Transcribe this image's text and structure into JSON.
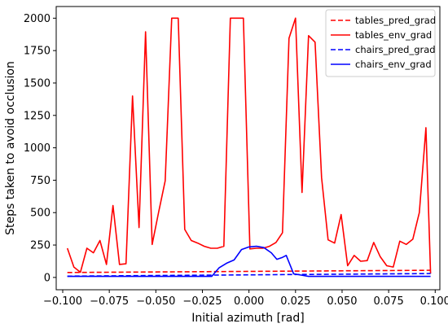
{
  "chart_data": {
    "type": "line",
    "title": "",
    "xlabel": "Initial azimuth [rad]",
    "ylabel": "Steps taken to avoid occlusion",
    "xlim": [
      -0.1035,
      0.1025
    ],
    "ylim": [
      -95,
      2090
    ],
    "xticks": [
      -0.1,
      -0.075,
      -0.05,
      -0.025,
      0.0,
      0.025,
      0.05,
      0.075,
      0.1
    ],
    "xtick_labels": [
      "−0.100",
      "−0.075",
      "−0.050",
      "−0.025",
      "0.000",
      "0.025",
      "0.050",
      "0.075",
      "0.100"
    ],
    "yticks": [
      0,
      250,
      500,
      750,
      1000,
      1250,
      1500,
      1750,
      2000
    ],
    "ytick_labels": [
      "0",
      "250",
      "500",
      "750",
      "1000",
      "1250",
      "1500",
      "1750",
      "2000"
    ],
    "grid": false,
    "legend_position": "top-right",
    "series": [
      {
        "name": "tables_pred_grad",
        "color": "#ff0000",
        "dash": "dashed",
        "x": [
          -0.0975,
          0.0975
        ],
        "y": [
          38,
          55
        ]
      },
      {
        "name": "tables_env_grad",
        "color": "#ff0000",
        "dash": "solid",
        "x": [
          -0.0975,
          -0.094,
          -0.0905,
          -0.087,
          -0.0835,
          -0.08,
          -0.0765,
          -0.073,
          -0.0695,
          -0.066,
          -0.0625,
          -0.059,
          -0.0555,
          -0.052,
          -0.0485,
          -0.045,
          -0.0415,
          -0.038,
          -0.0345,
          -0.031,
          -0.0275,
          -0.024,
          -0.0205,
          -0.017,
          -0.0135,
          -0.01,
          -0.0065,
          -0.003,
          0.0005,
          0.004,
          0.0075,
          0.011,
          0.0145,
          0.018,
          0.0215,
          0.025,
          0.0285,
          0.032,
          0.0355,
          0.039,
          0.0425,
          0.046,
          0.0495,
          0.053,
          0.0565,
          0.06,
          0.0635,
          0.067,
          0.0705,
          0.074,
          0.0775,
          0.081,
          0.0845,
          0.088,
          0.0915,
          0.095,
          0.0975
        ],
        "y": [
          225,
          80,
          40,
          225,
          190,
          285,
          100,
          555,
          100,
          105,
          1400,
          385,
          1895,
          255,
          505,
          745,
          2000,
          2000,
          370,
          285,
          265,
          240,
          225,
          225,
          240,
          2000,
          2000,
          2000,
          220,
          225,
          225,
          240,
          270,
          345,
          1845,
          2000,
          655,
          1865,
          1815,
          770,
          290,
          265,
          485,
          90,
          170,
          125,
          130,
          270,
          160,
          90,
          80,
          280,
          255,
          295,
          500,
          1155,
          30
        ]
      },
      {
        "name": "chairs_pred_grad",
        "color": "#0000ff",
        "dash": "dashed",
        "x": [
          -0.0975,
          0.0975
        ],
        "y": [
          10,
          30
        ]
      },
      {
        "name": "chairs_env_grad",
        "color": "#0000ff",
        "dash": "solid",
        "x": [
          -0.0975,
          -0.08,
          -0.06,
          -0.04,
          -0.02,
          -0.016,
          -0.012,
          -0.008,
          -0.004,
          0.0,
          0.004,
          0.008,
          0.012,
          0.015,
          0.018,
          0.02,
          0.024,
          0.028,
          0.032,
          0.04,
          0.06,
          0.08,
          0.0975
        ],
        "y": [
          8,
          8,
          8,
          8,
          8,
          75,
          110,
          135,
          215,
          235,
          240,
          230,
          190,
          140,
          155,
          170,
          28,
          18,
          8,
          8,
          8,
          8,
          8
        ]
      }
    ]
  }
}
